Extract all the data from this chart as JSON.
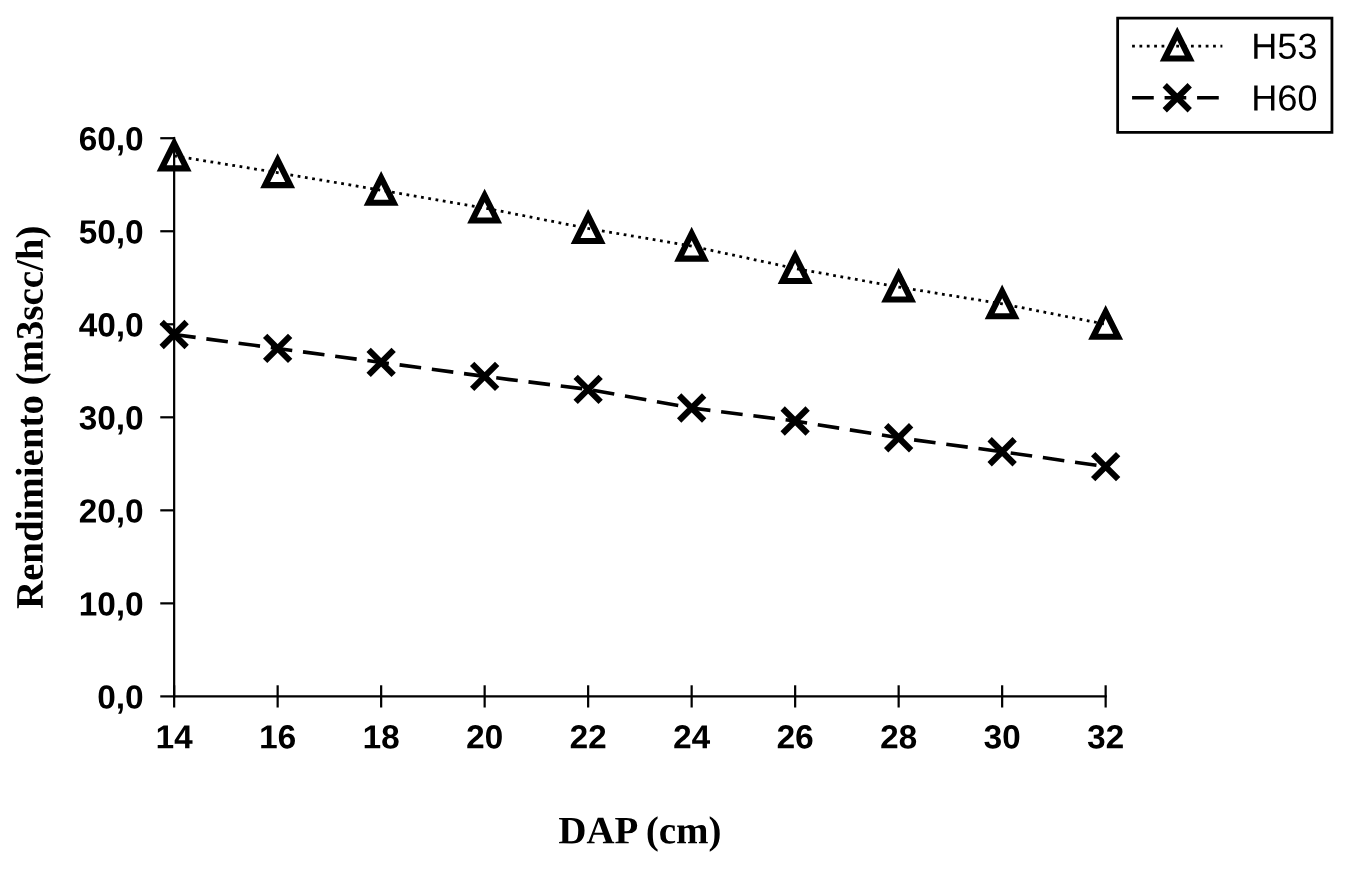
{
  "chart_data": {
    "type": "line",
    "xlabel": "DAP (cm)",
    "ylabel": "Rendimiento (m3scc/h)",
    "x": [
      14,
      16,
      18,
      20,
      22,
      24,
      26,
      28,
      30,
      32
    ],
    "series": [
      {
        "name": "H53",
        "color": "#000000",
        "marker": "triangle",
        "line_style": "dotted",
        "values": [
          58.1,
          56.3,
          54.4,
          52.5,
          50.3,
          48.4,
          46.0,
          44.0,
          42.2,
          40.0
        ]
      },
      {
        "name": "H60",
        "color": "#000000",
        "marker": "cross",
        "line_style": "dashed",
        "values": [
          38.9,
          37.4,
          35.9,
          34.4,
          33.0,
          31.0,
          29.6,
          27.8,
          26.3,
          24.7
        ]
      }
    ],
    "xlim": [
      14,
      32
    ],
    "xticks": [
      14,
      16,
      18,
      20,
      22,
      24,
      26,
      28,
      30,
      32
    ],
    "ylim": [
      0,
      60
    ],
    "yticks": [
      {
        "value": 0,
        "label": "0,0"
      },
      {
        "value": 10,
        "label": "10,0"
      },
      {
        "value": 20,
        "label": "20,0"
      },
      {
        "value": 30,
        "label": "30,0"
      },
      {
        "value": 40,
        "label": "40,0"
      },
      {
        "value": 50,
        "label": "50,0"
      },
      {
        "value": 60,
        "label": "60,0"
      }
    ],
    "grid": false,
    "legend": "top right"
  }
}
